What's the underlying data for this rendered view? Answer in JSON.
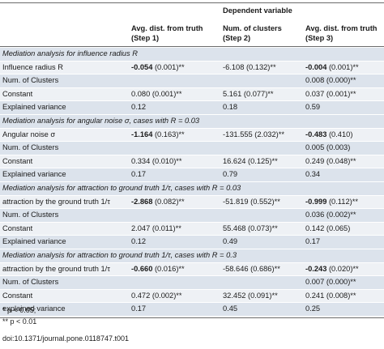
{
  "header": {
    "dependent_variable": "Dependent variable",
    "col1_line1": "Avg. dist. from truth",
    "col1_line2": "(Step 1)",
    "col2_line1": "Num. of clusters",
    "col2_line2": "(Step 2)",
    "col3_line1": "Avg. dist. from truth",
    "col3_line2": "(Step 3)"
  },
  "sections": [
    {
      "title": "Mediation analysis for influence radius R",
      "rows": [
        {
          "label": "Influence radius R",
          "c1": "-0.054",
          "c1b": true,
          "c1s": " (0.001)**",
          "c2": "-6.108 (0.132)**",
          "c3": "-0.004",
          "c3b": true,
          "c3s": " (0.001)**"
        },
        {
          "label": "Num. of Clusters",
          "c1": "",
          "c1s": "",
          "c2": "",
          "c3": "0.008 (0.000)**",
          "c3s": ""
        },
        {
          "label": "Constant",
          "c1": "0.080 (0.001)**",
          "c1s": "",
          "c2": "5.161 (0.077)**",
          "c3": "0.037 (0.001)**",
          "c3s": ""
        },
        {
          "label": "Explained variance",
          "c1": "0.12",
          "c1s": "",
          "c2": "0.18",
          "c3": "0.59",
          "c3s": ""
        }
      ]
    },
    {
      "title": "Mediation analysis for angular noise σ, cases with R = 0.03",
      "rows": [
        {
          "label": "Angular noise σ",
          "c1": "-1.164",
          "c1b": true,
          "c1s": " (0.163)**",
          "c2": "-131.555 (2.032)**",
          "c3": "-0.483",
          "c3b": true,
          "c3s": " (0.410)"
        },
        {
          "label": "Num. of Clusters",
          "c1": "",
          "c1s": "",
          "c2": "",
          "c3": "0.005 (0.003)",
          "c3s": ""
        },
        {
          "label": "Constant",
          "c1": "0.334 (0.010)**",
          "c1s": "",
          "c2": "16.624 (0.125)**",
          "c3": "0.249 (0.048)**",
          "c3s": ""
        },
        {
          "label": "Explained variance",
          "c1": "0.17",
          "c1s": "",
          "c2": "0.79",
          "c3": "0.34",
          "c3s": ""
        }
      ]
    },
    {
      "title": "Mediation analysis for attraction to ground truth 1/τ, cases with R = 0.03",
      "rows": [
        {
          "label": "attraction by the ground truth 1/τ",
          "c1": "-2.868",
          "c1b": true,
          "c1s": " (0.082)**",
          "c2": "-51.819 (0.552)**",
          "c3": "-0.999",
          "c3b": true,
          "c3s": " (0.112)**"
        },
        {
          "label": "Num. of Clusters",
          "c1": "",
          "c1s": "",
          "c2": "",
          "c3": "0.036 (0.002)**",
          "c3s": ""
        },
        {
          "label": "Constant",
          "c1": "2.047 (0.011)**",
          "c1s": "",
          "c2": "55.468 (0.073)**",
          "c3": "0.142 (0.065)",
          "c3s": ""
        },
        {
          "label": "Explained variance",
          "c1": "0.12",
          "c1s": "",
          "c2": "0.49",
          "c3": "0.17",
          "c3s": ""
        }
      ]
    },
    {
      "title": "Mediation analysis for attraction to ground truth 1/τ, cases with R = 0.3",
      "rows": [
        {
          "label": "attraction by the ground truth 1/τ",
          "c1": "-0.660",
          "c1b": true,
          "c1s": " (0.016)**",
          "c2": "-58.646 (0.686)**",
          "c3": "-0.243",
          "c3b": true,
          "c3s": " (0.020)**"
        },
        {
          "label": "Num. of Clusters",
          "c1": "",
          "c1s": "",
          "c2": "",
          "c3": "0.007 (0.000)**",
          "c3s": ""
        },
        {
          "label": "Constant",
          "c1": "0.472 (0.002)**",
          "c1s": "",
          "c2": "32.452 (0.091)**",
          "c3": "0.241 (0.008)**",
          "c3s": ""
        },
        {
          "label": "explained variance",
          "c1": "0.17",
          "c1s": "",
          "c2": "0.45",
          "c3": "0.25",
          "c3s": ""
        }
      ]
    }
  ],
  "notes": {
    "note1": "* p < 0.05;",
    "note2": "** p < 0.01"
  },
  "doi": "doi:10.1371/journal.pone.0118747.t001"
}
